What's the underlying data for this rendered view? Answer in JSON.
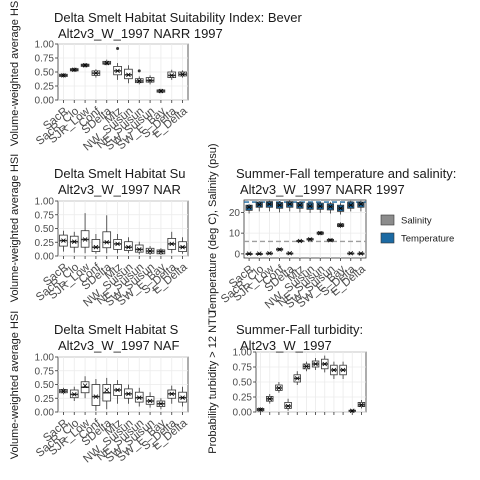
{
  "categories": [
    "SacR",
    "SacR_Clo",
    "SJR_Low",
    "Conf",
    "SDelta",
    "Mtz",
    "NW_Suisun",
    "NE_Suisun",
    "SW_Suisun",
    "SW_E_Bay",
    "S_Delta",
    "E_Delta"
  ],
  "tick_labels_100": [
    "1.00",
    "0.75",
    "0.50",
    "0.25",
    "0.00"
  ],
  "chart_data": [
    {
      "id": "habitat1",
      "type": "box",
      "title": "Delta Smelt Habitat Suitability Index: Bever",
      "subtitle": "Alt2v3_W_1997 NARR 1997",
      "ylabel": "Volume-weighted average HSI",
      "ylim": [
        0,
        1
      ],
      "ticks": [
        0,
        0.25,
        0.5,
        0.75,
        1.0
      ],
      "boxes": [
        {
          "min": 0.4,
          "q1": 0.42,
          "med": 0.44,
          "q3": 0.46,
          "max": 0.48,
          "mean": 0.44,
          "out": []
        },
        {
          "min": 0.5,
          "q1": 0.52,
          "med": 0.54,
          "q3": 0.56,
          "max": 0.58,
          "mean": 0.54,
          "out": []
        },
        {
          "min": 0.58,
          "q1": 0.6,
          "med": 0.62,
          "q3": 0.64,
          "max": 0.66,
          "mean": 0.62,
          "out": []
        },
        {
          "min": 0.4,
          "q1": 0.44,
          "med": 0.48,
          "q3": 0.52,
          "max": 0.55,
          "mean": 0.48,
          "out": []
        },
        {
          "min": 0.62,
          "q1": 0.64,
          "med": 0.66,
          "q3": 0.69,
          "max": 0.72,
          "mean": 0.66,
          "out": []
        },
        {
          "min": 0.36,
          "q1": 0.45,
          "med": 0.52,
          "q3": 0.6,
          "max": 0.66,
          "mean": 0.52,
          "out": [
            0.92
          ]
        },
        {
          "min": 0.3,
          "q1": 0.38,
          "med": 0.45,
          "q3": 0.55,
          "max": 0.62,
          "mean": 0.45,
          "out": []
        },
        {
          "min": 0.28,
          "q1": 0.31,
          "med": 0.34,
          "q3": 0.38,
          "max": 0.42,
          "mean": 0.34,
          "out": [
            0.52
          ]
        },
        {
          "min": 0.28,
          "q1": 0.32,
          "med": 0.35,
          "q3": 0.4,
          "max": 0.44,
          "mean": 0.35,
          "out": []
        },
        {
          "min": 0.12,
          "q1": 0.14,
          "med": 0.16,
          "q3": 0.18,
          "max": 0.2,
          "mean": 0.16,
          "out": []
        },
        {
          "min": 0.36,
          "q1": 0.4,
          "med": 0.44,
          "q3": 0.5,
          "max": 0.54,
          "mean": 0.44,
          "out": []
        },
        {
          "min": 0.4,
          "q1": 0.43,
          "med": 0.46,
          "q3": 0.5,
          "max": 0.53,
          "mean": 0.46,
          "out": []
        }
      ]
    },
    {
      "id": "habitat2",
      "type": "box",
      "title": "Delta Smelt Habitat Su",
      "subtitle": "Alt2v3_W_1997 NAR",
      "ylabel": "Volume-weighted average HSI",
      "ylim": [
        0,
        1
      ],
      "ticks": [
        0,
        0.25,
        0.5,
        0.75,
        1.0
      ],
      "boxes": [
        {
          "min": 0.08,
          "q1": 0.18,
          "med": 0.28,
          "q3": 0.38,
          "max": 0.46,
          "mean": 0.28,
          "out": []
        },
        {
          "min": 0.06,
          "q1": 0.16,
          "med": 0.26,
          "q3": 0.36,
          "max": 0.44,
          "mean": 0.26,
          "out": []
        },
        {
          "min": 0.05,
          "q1": 0.16,
          "med": 0.3,
          "q3": 0.46,
          "max": 0.78,
          "mean": 0.3,
          "out": []
        },
        {
          "min": 0.04,
          "q1": 0.08,
          "med": 0.16,
          "q3": 0.3,
          "max": 0.4,
          "mean": 0.16,
          "out": []
        },
        {
          "min": 0.05,
          "q1": 0.15,
          "med": 0.25,
          "q3": 0.44,
          "max": 0.74,
          "mean": 0.25,
          "out": []
        },
        {
          "min": 0.05,
          "q1": 0.12,
          "med": 0.22,
          "q3": 0.3,
          "max": 0.4,
          "mean": 0.22,
          "out": []
        },
        {
          "min": 0.05,
          "q1": 0.1,
          "med": 0.16,
          "q3": 0.26,
          "max": 0.34,
          "mean": 0.16,
          "out": []
        },
        {
          "min": 0.03,
          "q1": 0.07,
          "med": 0.12,
          "q3": 0.2,
          "max": 0.26,
          "mean": 0.12,
          "out": []
        },
        {
          "min": 0.02,
          "q1": 0.05,
          "med": 0.09,
          "q3": 0.14,
          "max": 0.18,
          "mean": 0.09,
          "out": []
        },
        {
          "min": 0.02,
          "q1": 0.04,
          "med": 0.08,
          "q3": 0.11,
          "max": 0.14,
          "mean": 0.08,
          "out": []
        },
        {
          "min": 0.05,
          "q1": 0.12,
          "med": 0.22,
          "q3": 0.32,
          "max": 0.44,
          "mean": 0.22,
          "out": []
        },
        {
          "min": 0.04,
          "q1": 0.08,
          "med": 0.16,
          "q3": 0.26,
          "max": 0.34,
          "mean": 0.16,
          "out": []
        }
      ]
    },
    {
      "id": "habitat3",
      "type": "box",
      "title": "Delta Smelt Habitat S",
      "subtitle": "Alt2v3_W_1997 NAF",
      "ylabel": "Volume-weighted average HSI",
      "ylim": [
        0,
        1
      ],
      "ticks": [
        0,
        0.25,
        0.5,
        0.75,
        1.0
      ],
      "boxes": [
        {
          "min": 0.32,
          "q1": 0.35,
          "med": 0.38,
          "q3": 0.41,
          "max": 0.44,
          "mean": 0.38,
          "out": []
        },
        {
          "min": 0.2,
          "q1": 0.26,
          "med": 0.32,
          "q3": 0.4,
          "max": 0.46,
          "mean": 0.32,
          "out": []
        },
        {
          "min": 0.25,
          "q1": 0.35,
          "med": 0.45,
          "q3": 0.55,
          "max": 0.65,
          "mean": 0.48,
          "out": []
        },
        {
          "min": 0.02,
          "q1": 0.12,
          "med": 0.28,
          "q3": 0.5,
          "max": 0.6,
          "mean": 0.28,
          "out": []
        },
        {
          "min": 0.05,
          "q1": 0.2,
          "med": 0.35,
          "q3": 0.5,
          "max": 0.62,
          "mean": 0.4,
          "out": []
        },
        {
          "min": 0.15,
          "q1": 0.3,
          "med": 0.4,
          "q3": 0.5,
          "max": 0.58,
          "mean": 0.4,
          "out": []
        },
        {
          "min": 0.15,
          "q1": 0.25,
          "med": 0.33,
          "q3": 0.42,
          "max": 0.5,
          "mean": 0.33,
          "out": []
        },
        {
          "min": 0.1,
          "q1": 0.18,
          "med": 0.26,
          "q3": 0.36,
          "max": 0.44,
          "mean": 0.26,
          "out": []
        },
        {
          "min": 0.08,
          "q1": 0.14,
          "med": 0.2,
          "q3": 0.28,
          "max": 0.36,
          "mean": 0.2,
          "out": []
        },
        {
          "min": 0.05,
          "q1": 0.1,
          "med": 0.15,
          "q3": 0.2,
          "max": 0.25,
          "mean": 0.15,
          "out": []
        },
        {
          "min": 0.15,
          "q1": 0.25,
          "med": 0.33,
          "q3": 0.4,
          "max": 0.48,
          "mean": 0.33,
          "out": []
        },
        {
          "min": 0.1,
          "q1": 0.18,
          "med": 0.26,
          "q3": 0.36,
          "max": 0.46,
          "mean": 0.26,
          "out": []
        }
      ]
    },
    {
      "id": "tempsal",
      "type": "box",
      "title": "Summer-Fall temperature and salinity:",
      "subtitle": "Alt2v3_W_1997 NARR 1997",
      "ylabel": "Temperature (deg C), Salinity (psu)",
      "ylim": [
        -2,
        26
      ],
      "ticks": [
        0,
        10,
        20
      ],
      "tick_labels": [
        "0",
        "10",
        "20"
      ],
      "ref_lines": [
        {
          "value": 6,
          "color": "#9e9e9e"
        },
        {
          "value": 25,
          "color": "#1c6aa3"
        }
      ],
      "legend": {
        "entries": [
          {
            "name": "Salinity",
            "color": "#8c8c8c"
          },
          {
            "name": "Temperature",
            "color": "#1c6aa3"
          }
        ]
      },
      "series": [
        {
          "name": "Salinity",
          "color": "#8c8c8c",
          "boxes": [
            {
              "min": 0.0,
              "q1": 0.05,
              "med": 0.1,
              "q3": 0.15,
              "max": 0.2,
              "mean": 0.1,
              "out": []
            },
            {
              "min": 0.0,
              "q1": 0.05,
              "med": 0.1,
              "q3": 0.15,
              "max": 0.2,
              "mean": 0.1,
              "out": []
            },
            {
              "min": 0.1,
              "q1": 0.2,
              "med": 0.3,
              "q3": 0.4,
              "max": 0.5,
              "mean": 0.3,
              "out": []
            },
            {
              "min": 1.5,
              "q1": 1.8,
              "med": 2.1,
              "q3": 2.5,
              "max": 2.8,
              "mean": 2.1,
              "out": []
            },
            {
              "min": 0.1,
              "q1": 0.2,
              "med": 0.3,
              "q3": 0.4,
              "max": 0.5,
              "mean": 0.3,
              "out": []
            },
            {
              "min": 5.6,
              "q1": 5.9,
              "med": 6.2,
              "q3": 6.5,
              "max": 6.8,
              "mean": 6.2,
              "out": []
            },
            {
              "min": 6.3,
              "q1": 6.7,
              "med": 7.0,
              "q3": 7.4,
              "max": 7.8,
              "mean": 7.0,
              "out": []
            },
            {
              "min": 9.0,
              "q1": 9.5,
              "med": 10.0,
              "q3": 10.5,
              "max": 11.0,
              "mean": 10.0,
              "out": []
            },
            {
              "min": 5.8,
              "q1": 6.2,
              "med": 6.6,
              "q3": 7.0,
              "max": 7.4,
              "mean": 6.6,
              "out": []
            },
            {
              "min": 12.5,
              "q1": 13.2,
              "med": 13.8,
              "q3": 14.5,
              "max": 15.2,
              "mean": 13.8,
              "out": []
            },
            {
              "min": 0.1,
              "q1": 0.2,
              "med": 0.3,
              "q3": 0.4,
              "max": 0.5,
              "mean": 0.3,
              "out": []
            },
            {
              "min": 0.0,
              "q1": 0.1,
              "med": 0.2,
              "q3": 0.3,
              "max": 0.4,
              "mean": 0.2,
              "out": []
            }
          ]
        },
        {
          "name": "Temperature",
          "color": "#1c6aa3",
          "boxes": [
            {
              "min": 19.5,
              "q1": 21.0,
              "med": 22.5,
              "q3": 23.5,
              "max": 24.0,
              "mean": 22.5,
              "out": []
            },
            {
              "min": 20.5,
              "q1": 22.5,
              "med": 23.8,
              "q3": 25.0,
              "max": 25.5,
              "mean": 23.8,
              "out": []
            },
            {
              "min": 20.5,
              "q1": 22.5,
              "med": 24.0,
              "q3": 25.2,
              "max": 25.8,
              "mean": 24.0,
              "out": []
            },
            {
              "min": 20.0,
              "q1": 22.0,
              "med": 23.5,
              "q3": 24.8,
              "max": 25.5,
              "mean": 23.5,
              "out": []
            },
            {
              "min": 20.5,
              "q1": 22.5,
              "med": 24.0,
              "q3": 25.2,
              "max": 26.0,
              "mean": 24.0,
              "out": []
            },
            {
              "min": 20.0,
              "q1": 22.0,
              "med": 23.5,
              "q3": 24.8,
              "max": 25.5,
              "mean": 23.5,
              "out": []
            },
            {
              "min": 19.8,
              "q1": 21.5,
              "med": 23.0,
              "q3": 24.5,
              "max": 25.0,
              "mean": 23.0,
              "out": []
            },
            {
              "min": 19.8,
              "q1": 21.5,
              "med": 23.0,
              "q3": 24.5,
              "max": 25.0,
              "mean": 23.0,
              "out": []
            },
            {
              "min": 19.5,
              "q1": 21.2,
              "med": 22.8,
              "q3": 24.2,
              "max": 25.0,
              "mean": 22.8,
              "out": []
            },
            {
              "min": 19.0,
              "q1": 20.5,
              "med": 22.0,
              "q3": 23.5,
              "max": 24.5,
              "mean": 22.0,
              "out": []
            },
            {
              "min": 20.5,
              "q1": 22.0,
              "med": 23.5,
              "q3": 25.0,
              "max": 25.8,
              "mean": 23.5,
              "out": []
            },
            {
              "min": 20.5,
              "q1": 22.5,
              "med": 24.0,
              "q3": 25.0,
              "max": 25.8,
              "mean": 24.0,
              "out": []
            }
          ]
        }
      ]
    },
    {
      "id": "turbidity",
      "type": "box",
      "title": "Summer-Fall turbidity:",
      "subtitle": "Alt2v3_W_1997",
      "ylabel": "Probability turbidity > 12 NTU",
      "ylim": [
        0,
        1
      ],
      "ticks": [
        0,
        0.25,
        0.5,
        0.75,
        1.0
      ],
      "boxes": [
        {
          "min": 0.0,
          "q1": 0.02,
          "med": 0.04,
          "q3": 0.06,
          "max": 0.08,
          "mean": 0.04,
          "out": []
        },
        {
          "min": 0.14,
          "q1": 0.18,
          "med": 0.22,
          "q3": 0.26,
          "max": 0.3,
          "mean": 0.22,
          "out": []
        },
        {
          "min": 0.32,
          "q1": 0.36,
          "med": 0.4,
          "q3": 0.45,
          "max": 0.5,
          "mean": 0.4,
          "out": []
        },
        {
          "min": 0.02,
          "q1": 0.06,
          "med": 0.1,
          "q3": 0.16,
          "max": 0.22,
          "mean": 0.1,
          "out": []
        },
        {
          "min": 0.45,
          "q1": 0.5,
          "med": 0.56,
          "q3": 0.62,
          "max": 0.68,
          "mean": 0.56,
          "out": []
        },
        {
          "min": 0.68,
          "q1": 0.72,
          "med": 0.76,
          "q3": 0.8,
          "max": 0.84,
          "mean": 0.76,
          "out": []
        },
        {
          "min": 0.7,
          "q1": 0.75,
          "med": 0.8,
          "q3": 0.85,
          "max": 0.9,
          "mean": 0.8,
          "out": []
        },
        {
          "min": 0.66,
          "q1": 0.72,
          "med": 0.8,
          "q3": 0.88,
          "max": 0.94,
          "mean": 0.8,
          "out": []
        },
        {
          "min": 0.55,
          "q1": 0.62,
          "med": 0.7,
          "q3": 0.78,
          "max": 0.84,
          "mean": 0.7,
          "out": []
        },
        {
          "min": 0.55,
          "q1": 0.62,
          "med": 0.7,
          "q3": 0.78,
          "max": 0.84,
          "mean": 0.7,
          "out": []
        },
        {
          "min": 0.0,
          "q1": 0.01,
          "med": 0.02,
          "q3": 0.03,
          "max": 0.04,
          "mean": 0.02,
          "out": []
        },
        {
          "min": 0.06,
          "q1": 0.09,
          "med": 0.12,
          "q3": 0.16,
          "max": 0.2,
          "mean": 0.12,
          "out": []
        }
      ]
    }
  ]
}
